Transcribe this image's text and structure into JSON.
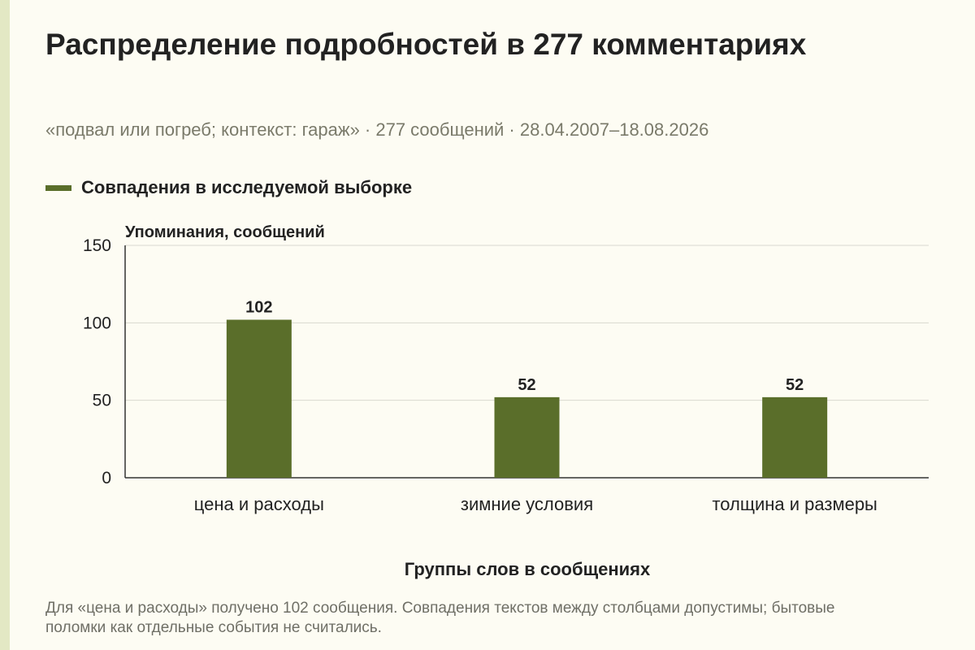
{
  "title": "Распределение подробностей в 277 комментариях",
  "subtitle": "«подвал или погреб; контекст: гараж» · 277 сообщений · 28.04.2007–18.08.2026",
  "footnote": "Для «цена и расходы» получено 102 сообщения. Совпадения текстов между столбцами допустимы; бытовые поломки как отдельные события не считались.",
  "colors": {
    "bar": "#5a6e2a",
    "background": "#fdfcf3",
    "stripe": "#e3e8c4",
    "grid": "#d9d9d0"
  },
  "chart_data": {
    "type": "bar",
    "categories": [
      "цена и расходы",
      "зимние условия",
      "толщина и размеры"
    ],
    "series": [
      {
        "name": "Совпадения в исследуемой выборке",
        "values": [
          102,
          52,
          52
        ]
      }
    ],
    "xlabel": "Группы слов в сообщениях",
    "ylabel": "Упоминания, сообщений",
    "ylim": [
      0,
      150
    ],
    "yticks": [
      0,
      50,
      100,
      150
    ],
    "grid": true,
    "legend_position": "top-left"
  }
}
